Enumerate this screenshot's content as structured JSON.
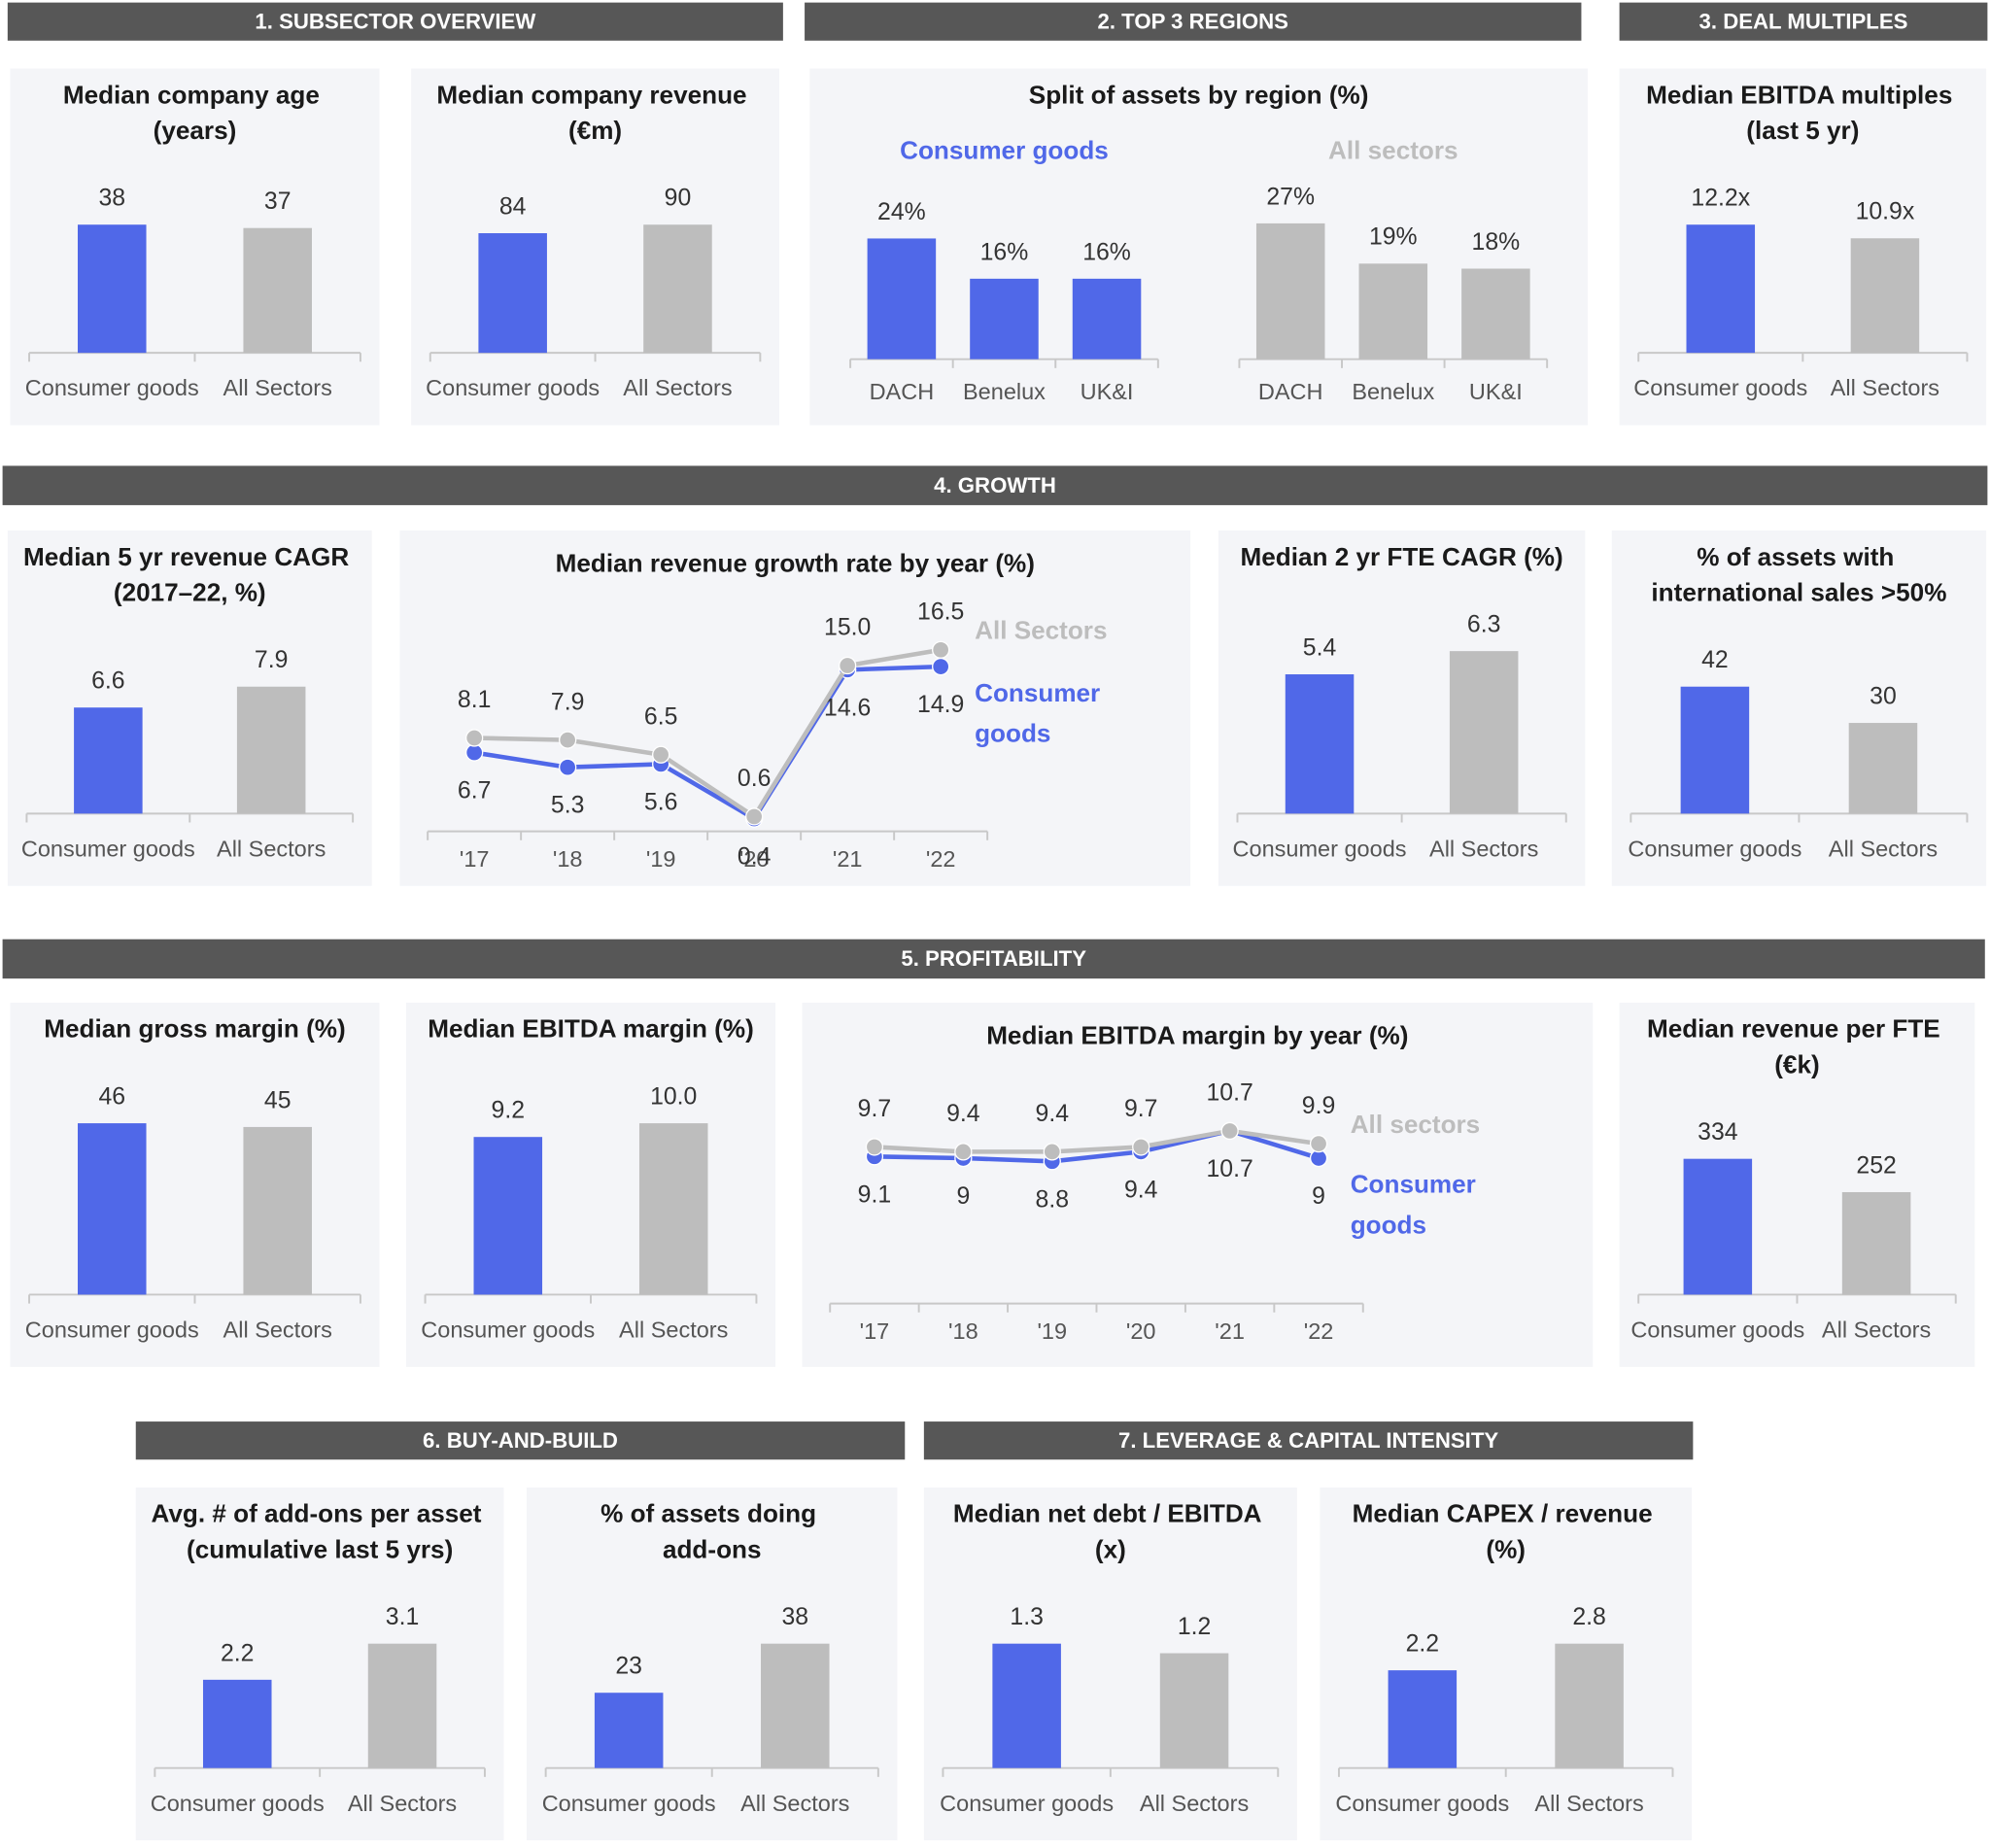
{
  "sections": [
    "1. SUBSECTOR OVERVIEW",
    "2. TOP 3 REGIONS",
    "3. DEAL MULTIPLES",
    "4. GROWTH",
    "5. PROFITABILITY",
    "6. BUY-AND-BUILD",
    "7. LEVERAGE & CAPITAL INTENSITY"
  ],
  "chart_data": [
    {
      "type": "bar",
      "title": "Median company age (years)",
      "categories": [
        "Consumer goods",
        "All Sectors"
      ],
      "values": [
        38,
        37
      ],
      "colors": [
        "#5068e8",
        "#bdbdbd"
      ]
    },
    {
      "type": "bar",
      "title": "Median company revenue (€m)",
      "categories": [
        "Consumer goods",
        "All Sectors"
      ],
      "values": [
        84,
        90
      ],
      "colors": [
        "#5068e8",
        "#bdbdbd"
      ]
    },
    {
      "type": "bar",
      "title": "Split of assets by region (%)",
      "categories": [
        "DACH",
        "Benelux",
        "UK&I"
      ],
      "series": [
        {
          "name": "Consumer goods",
          "color": "#5068e8",
          "values": [
            24,
            16,
            16
          ],
          "value_labels": [
            "24%",
            "16%",
            "16%"
          ]
        },
        {
          "name": "All sectors",
          "color": "#bdbdbd",
          "values": [
            27,
            19,
            18
          ],
          "value_labels": [
            "27%",
            "19%",
            "18%"
          ]
        }
      ]
    },
    {
      "type": "bar",
      "title": "Median EBITDA multiples (last 5 yr)",
      "categories": [
        "Consumer goods",
        "All Sectors"
      ],
      "values": [
        12.2,
        10.9
      ],
      "value_labels": [
        "12.2x",
        "10.9x"
      ],
      "colors": [
        "#5068e8",
        "#bdbdbd"
      ]
    },
    {
      "type": "bar",
      "title": "Median 5 yr revenue CAGR (2017–22, %)",
      "categories": [
        "Consumer goods",
        "All Sectors"
      ],
      "values": [
        6.6,
        7.9
      ],
      "colors": [
        "#5068e8",
        "#bdbdbd"
      ]
    },
    {
      "type": "line",
      "title": "Median revenue growth rate by year (%)",
      "categories": [
        "'17",
        "'18",
        "'19",
        "'20",
        "'21",
        "'22"
      ],
      "series": [
        {
          "name": "Consumer goods",
          "color": "#5068e8",
          "values": [
            6.7,
            5.3,
            5.6,
            0.4,
            14.6,
            14.9
          ]
        },
        {
          "name": "All Sectors",
          "color": "#bdbdbd",
          "values": [
            8.1,
            7.9,
            6.5,
            0.6,
            15.0,
            16.5
          ],
          "value_labels": [
            "8.1",
            "7.9",
            "6.5",
            "0.6",
            "15.0",
            "16.5"
          ]
        }
      ]
    },
    {
      "type": "bar",
      "title": "Median 2 yr FTE CAGR (%)",
      "categories": [
        "Consumer goods",
        "All Sectors"
      ],
      "values": [
        5.4,
        6.3
      ],
      "colors": [
        "#5068e8",
        "#bdbdbd"
      ]
    },
    {
      "type": "bar",
      "title": "% of assets with international sales >50%",
      "categories": [
        "Consumer goods",
        "All Sectors"
      ],
      "values": [
        42,
        30
      ],
      "colors": [
        "#5068e8",
        "#bdbdbd"
      ]
    },
    {
      "type": "bar",
      "title": "Median gross margin (%)",
      "categories": [
        "Consumer goods",
        "All Sectors"
      ],
      "values": [
        46,
        45
      ],
      "colors": [
        "#5068e8",
        "#bdbdbd"
      ]
    },
    {
      "type": "bar",
      "title": "Median EBITDA margin (%)",
      "categories": [
        "Consumer goods",
        "All Sectors"
      ],
      "values": [
        9.2,
        10.0
      ],
      "value_labels": [
        "9.2",
        "10.0"
      ],
      "colors": [
        "#5068e8",
        "#bdbdbd"
      ]
    },
    {
      "type": "line",
      "title": "Median EBITDA margin by year (%)",
      "categories": [
        "'17",
        "'18",
        "'19",
        "'20",
        "'21",
        "'22"
      ],
      "series": [
        {
          "name": "Consumer goods",
          "color": "#5068e8",
          "values": [
            9.1,
            9.0,
            8.8,
            9.4,
            10.7,
            9.0
          ]
        },
        {
          "name": "All sectors",
          "color": "#bdbdbd",
          "values": [
            9.7,
            9.4,
            9.4,
            9.7,
            10.7,
            9.9
          ]
        }
      ]
    },
    {
      "type": "bar",
      "title": "Median revenue per FTE (€k)",
      "categories": [
        "Consumer goods",
        "All Sectors"
      ],
      "values": [
        334,
        252
      ],
      "colors": [
        "#5068e8",
        "#bdbdbd"
      ]
    },
    {
      "type": "bar",
      "title": "Avg. # of add-ons per asset (cumulative last 5 yrs)",
      "categories": [
        "Consumer goods",
        "All Sectors"
      ],
      "values": [
        2.2,
        3.1
      ],
      "colors": [
        "#5068e8",
        "#bdbdbd"
      ]
    },
    {
      "type": "bar",
      "title": "% of assets doing add-ons",
      "categories": [
        "Consumer goods",
        "All Sectors"
      ],
      "values": [
        23,
        38
      ],
      "colors": [
        "#5068e8",
        "#bdbdbd"
      ]
    },
    {
      "type": "bar",
      "title": "Median net debt / EBITDA (x)",
      "categories": [
        "Consumer goods",
        "All Sectors"
      ],
      "values": [
        1.3,
        1.2
      ],
      "colors": [
        "#5068e8",
        "#bdbdbd"
      ]
    },
    {
      "type": "bar",
      "title": "Median CAPEX / revenue (%)",
      "categories": [
        "Consumer goods",
        "All Sectors"
      ],
      "values": [
        2.2,
        2.8
      ],
      "colors": [
        "#5068e8",
        "#bdbdbd"
      ]
    }
  ]
}
